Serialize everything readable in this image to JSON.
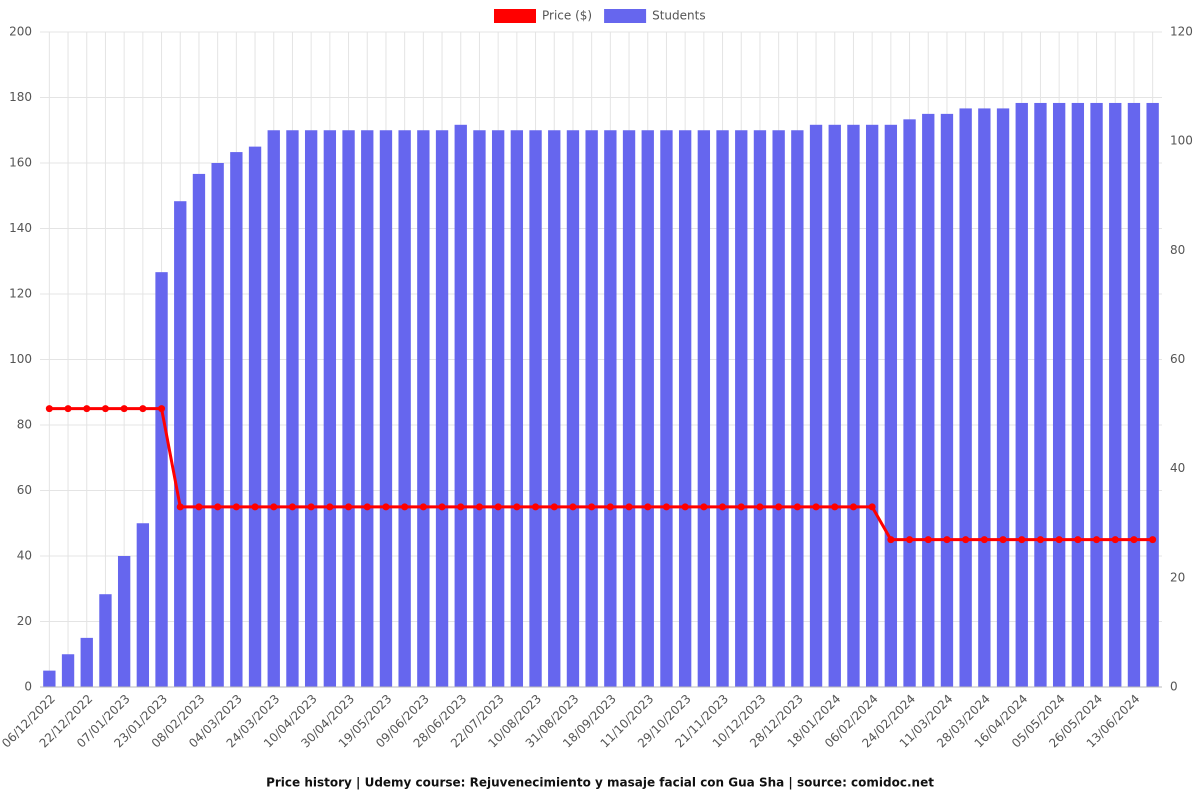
{
  "chart_data": {
    "type": "bar-line",
    "title": "Price history | Udemy course: Rejuvenecimiento y masaje facial con Gua Sha | source: comidoc.net",
    "categories": [
      "06/12/2022",
      null,
      "22/12/2022",
      null,
      "07/01/2023",
      null,
      "23/01/2023",
      null,
      "08/02/2023",
      null,
      "04/03/2023",
      null,
      "24/03/2023",
      null,
      "10/04/2023",
      null,
      "30/04/2023",
      null,
      "19/05/2023",
      null,
      "09/06/2023",
      null,
      "28/06/2023",
      null,
      "22/07/2023",
      null,
      "10/08/2023",
      null,
      "31/08/2023",
      null,
      "18/09/2023",
      null,
      "11/10/2023",
      null,
      "29/10/2023",
      null,
      "21/11/2023",
      null,
      "10/12/2023",
      null,
      "28/12/2023",
      null,
      "18/01/2024",
      null,
      "06/02/2024",
      null,
      "24/02/2024",
      null,
      "11/03/2024",
      null,
      "28/03/2024",
      null,
      "16/04/2024",
      null,
      "05/05/2024",
      null,
      "26/05/2024",
      null,
      "13/06/2024",
      null
    ],
    "series": [
      {
        "name": "Price ($)",
        "type": "line",
        "axis": "y",
        "color": "#ff0000",
        "values": [
          85,
          85,
          85,
          85,
          85,
          85,
          85,
          55,
          55,
          55,
          55,
          55,
          55,
          55,
          55,
          55,
          55,
          55,
          55,
          55,
          55,
          55,
          55,
          55,
          55,
          55,
          55,
          55,
          55,
          55,
          55,
          55,
          55,
          55,
          55,
          55,
          55,
          55,
          55,
          55,
          55,
          55,
          55,
          55,
          55,
          45,
          45,
          45,
          45,
          45,
          45,
          45,
          45,
          45,
          45,
          45,
          45,
          45,
          45,
          45
        ]
      },
      {
        "name": "Students",
        "type": "bar",
        "axis": "y2",
        "color": "#6666ee",
        "values": [
          3,
          6,
          9,
          17,
          24,
          30,
          76,
          89,
          94,
          96,
          98,
          99,
          102,
          102,
          102,
          102,
          102,
          102,
          102,
          102,
          102,
          102,
          103,
          102,
          102,
          102,
          102,
          102,
          102,
          102,
          102,
          102,
          102,
          102,
          102,
          102,
          102,
          102,
          102,
          102,
          102,
          103,
          103,
          103,
          103,
          103,
          104,
          105,
          105,
          106,
          106,
          106,
          107,
          107,
          107,
          107,
          107,
          107,
          107,
          107
        ]
      }
    ],
    "ylim": [
      0,
      200
    ],
    "yticks": [
      0,
      20,
      40,
      60,
      80,
      100,
      120,
      140,
      160,
      180,
      200
    ],
    "y2lim": [
      0,
      120
    ],
    "y2ticks": [
      0,
      20,
      40,
      60,
      80,
      100,
      120
    ],
    "grid": true
  }
}
